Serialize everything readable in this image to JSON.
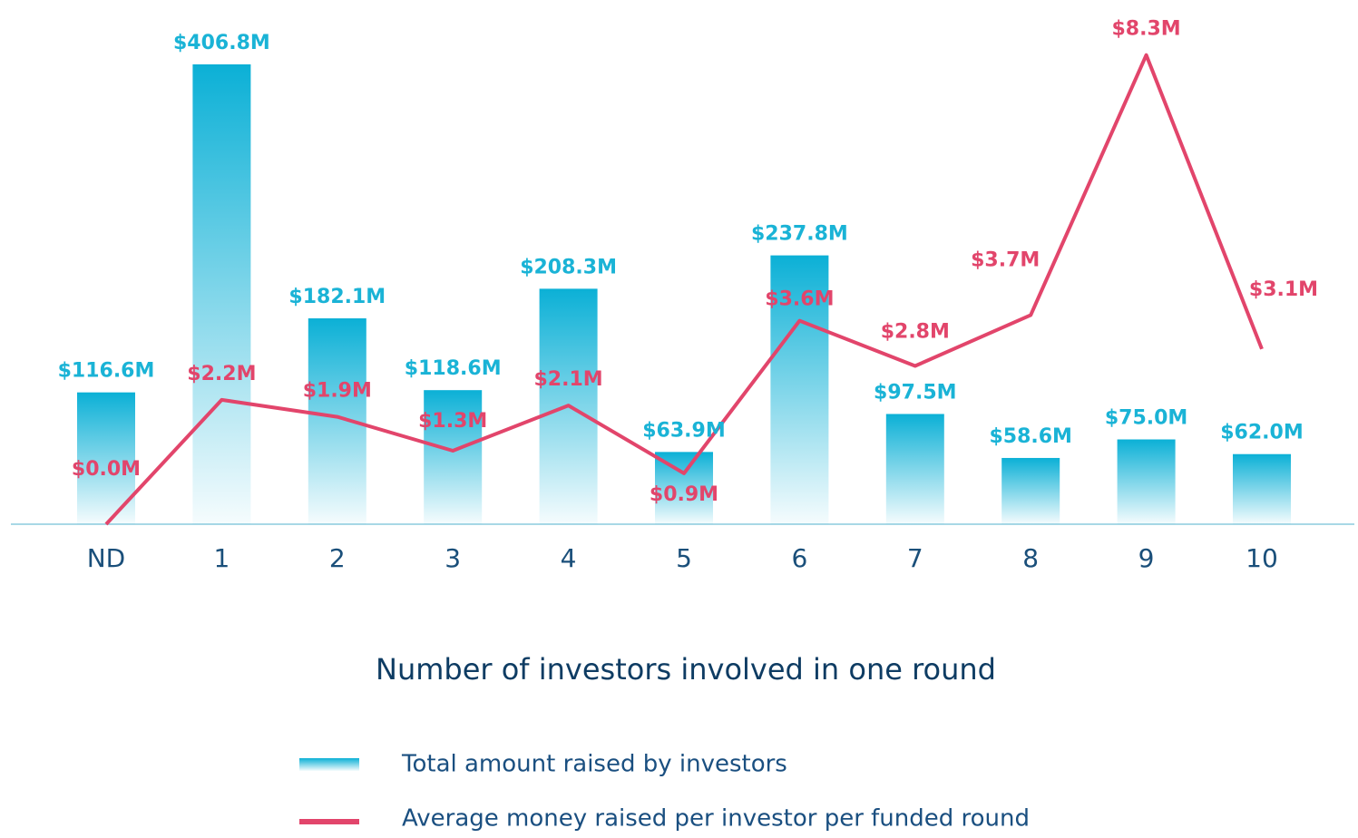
{
  "chart_data": {
    "type": "bar",
    "x_label": "Number of investors involved in one round",
    "categories": [
      "ND",
      "1",
      "2",
      "3",
      "4",
      "5",
      "6",
      "7",
      "8",
      "9",
      "10"
    ],
    "ylim": [
      0,
      420
    ],
    "y2lim": [
      0,
      8.4
    ],
    "series": [
      {
        "name": "Total amount raised by investors",
        "type": "bar",
        "color": "#0bb0d6",
        "values": [
          116.6,
          406.8,
          182.1,
          118.6,
          208.3,
          63.9,
          237.8,
          97.5,
          58.6,
          75.0,
          62.0
        ],
        "value_labels": [
          "$116.6M",
          "$406.8M",
          "$182.1M",
          "$118.6M",
          "$208.3M",
          "$63.9M",
          "$237.8M",
          "$97.5M",
          "$58.6M",
          "$75.0M",
          "$62.0M"
        ]
      },
      {
        "name": "Average money raised per investor per funded round",
        "type": "line",
        "axis": "y2",
        "color": "#e2456b",
        "values": [
          0.0,
          2.2,
          1.9,
          1.3,
          2.1,
          0.9,
          3.6,
          2.8,
          3.7,
          8.3,
          3.1
        ],
        "value_labels": [
          "$0.0M",
          "$2.2M",
          "$1.9M",
          "$1.3M",
          "$2.1M",
          "$0.9M",
          "$3.6M",
          "$2.8M",
          "$3.7M",
          "$8.3M",
          "$3.1M"
        ]
      }
    ]
  }
}
